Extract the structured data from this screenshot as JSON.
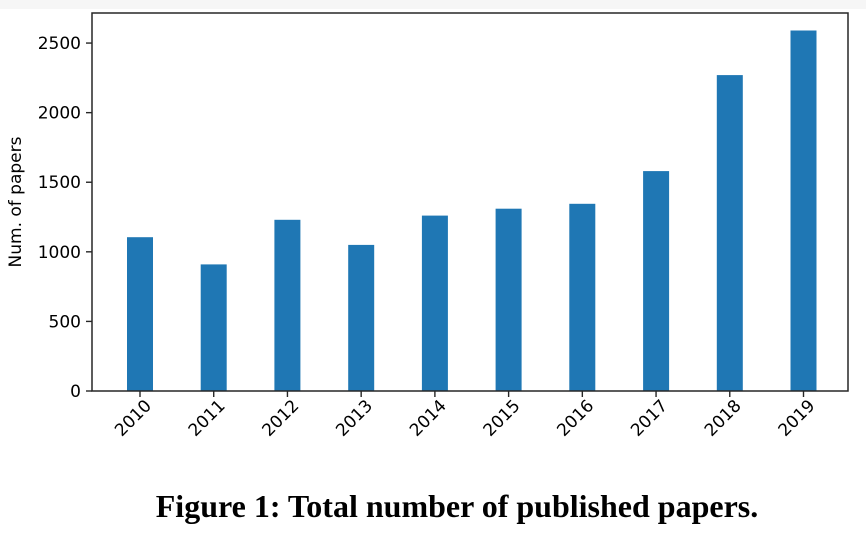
{
  "page": {
    "background": "#ffffff",
    "top_edge_color": "#f6f6f6"
  },
  "caption": "Figure 1: Total number of published papers.",
  "chart_data": {
    "type": "bar",
    "title": "",
    "xlabel": "",
    "ylabel": "Num. of papers",
    "categories": [
      "2010",
      "2011",
      "2012",
      "2013",
      "2014",
      "2015",
      "2016",
      "2017",
      "2018",
      "2019"
    ],
    "values": [
      1105,
      910,
      1230,
      1050,
      1260,
      1310,
      1345,
      1580,
      2270,
      2590
    ],
    "yticks": [
      0,
      500,
      1000,
      1500,
      2000,
      2500
    ],
    "ylim": [
      0,
      2716
    ],
    "grid": false,
    "legend": "none",
    "x_tick_rotation_deg": 45,
    "bar_color": "#1f77b4",
    "axis_color": "#262626",
    "text_color": "#000000"
  }
}
